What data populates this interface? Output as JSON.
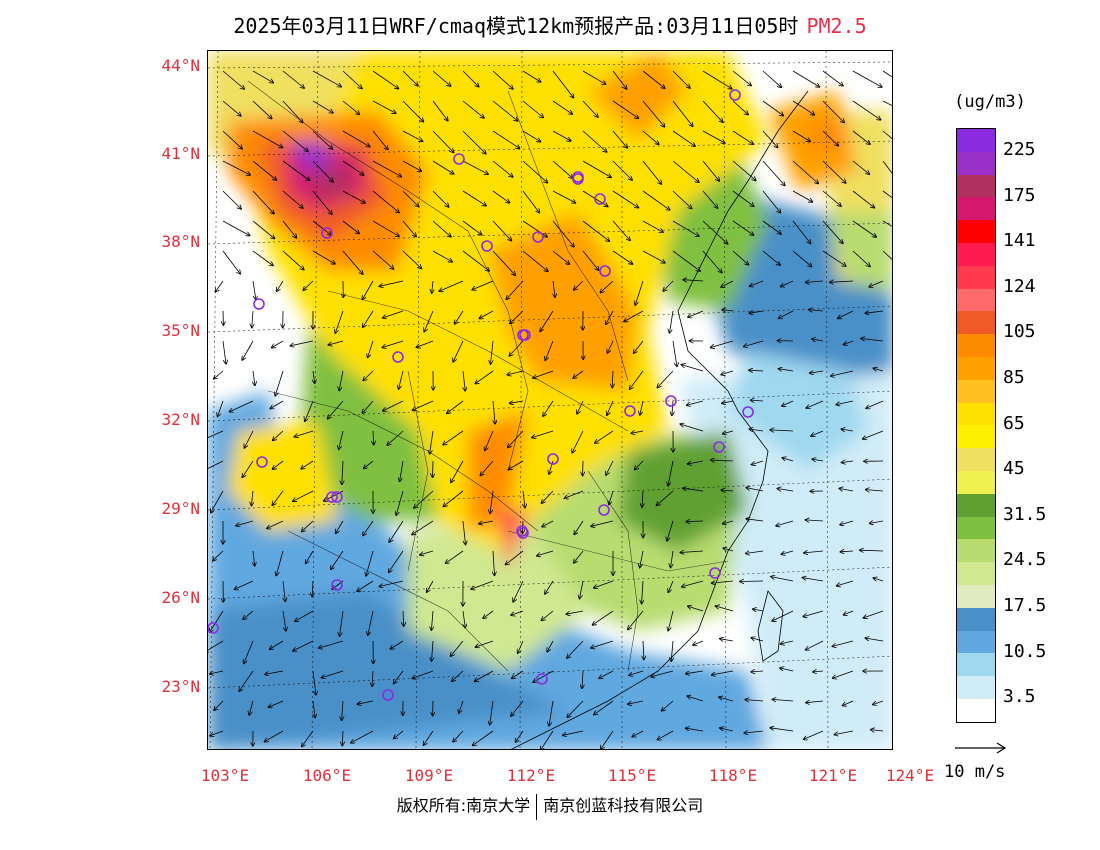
{
  "title": {
    "main": "2025年03月11日WRF/cmaq模式12km预报产品:03月11日05时",
    "variable": "PM2.5"
  },
  "map": {
    "latitude_labels": [
      "44°N",
      "41°N",
      "38°N",
      "35°N",
      "32°N",
      "29°N",
      "26°N",
      "23°N"
    ],
    "longitude_labels": [
      "103°E",
      "106°E",
      "109°E",
      "112°E",
      "115°E",
      "118°E",
      "121°E",
      "124°E"
    ],
    "label_color": "#e0303a",
    "city_marker_color": "#8a2be2",
    "city_marker_count": 29
  },
  "legend": {
    "unit": "(ug/m3)",
    "levels": [
      {
        "label": "225",
        "color": "#8b2be0"
      },
      {
        "label": "",
        "color": "#9b30c8"
      },
      {
        "label": "175",
        "color": "#b03060"
      },
      {
        "label": "",
        "color": "#d4186e"
      },
      {
        "label": "141",
        "color": "#ff0000"
      },
      {
        "label": "",
        "color": "#ff1a50"
      },
      {
        "label": "124",
        "color": "#ff3a50"
      },
      {
        "label": "",
        "color": "#ff6a6a"
      },
      {
        "label": "105",
        "color": "#f05a28"
      },
      {
        "label": "",
        "color": "#ff8c00"
      },
      {
        "label": "85",
        "color": "#ffa000"
      },
      {
        "label": "",
        "color": "#ffc020"
      },
      {
        "label": "65",
        "color": "#ffe000"
      },
      {
        "label": "",
        "color": "#fff000"
      },
      {
        "label": "45",
        "color": "#f0e060"
      },
      {
        "label": "",
        "color": "#f0f050"
      },
      {
        "label": "31.5",
        "color": "#60a030"
      },
      {
        "label": "",
        "color": "#80c040"
      },
      {
        "label": "24.5",
        "color": "#b8dc70"
      },
      {
        "label": "",
        "color": "#d0e890"
      },
      {
        "label": "17.5",
        "color": "#e0ecc0"
      },
      {
        "label": "",
        "color": "#4a90c8"
      },
      {
        "label": "10.5",
        "color": "#60a8e0"
      },
      {
        "label": "",
        "color": "#a0d8f0"
      },
      {
        "label": "3.5",
        "color": "#d0ecf8"
      },
      {
        "label": "",
        "color": "#ffffff"
      }
    ],
    "vector_key_label": "10 m/s"
  },
  "copyright": {
    "left": "版权所有:南京大学",
    "right": "南京创蓝科技有限公司"
  }
}
